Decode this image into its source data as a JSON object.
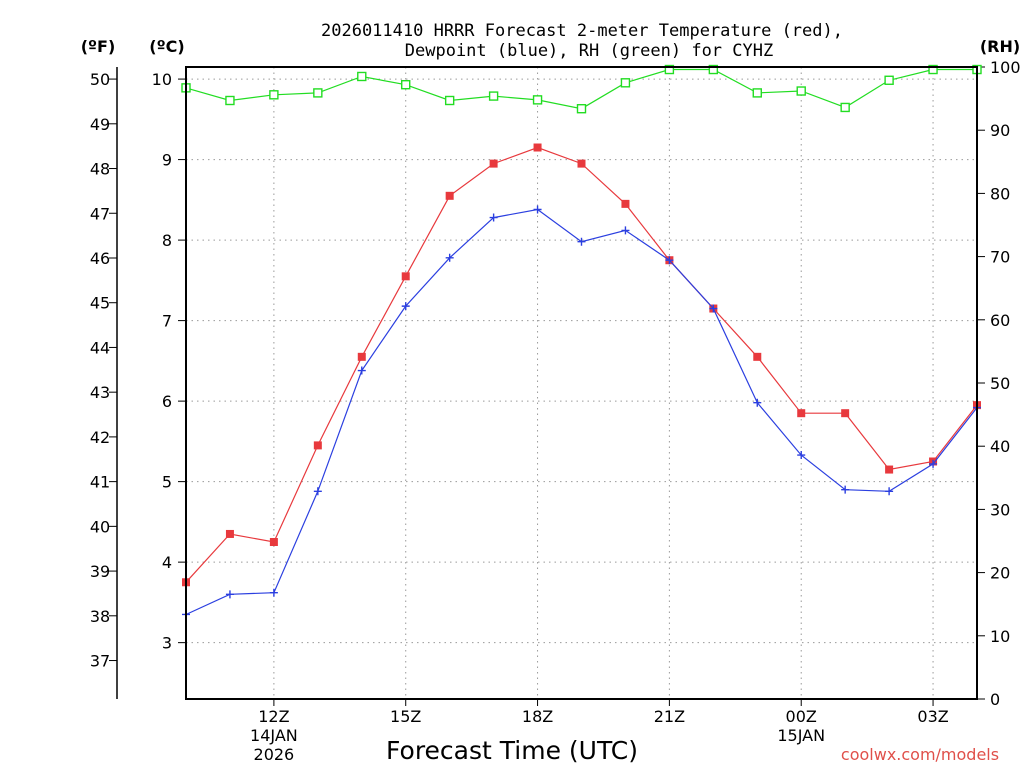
{
  "chart_data": {
    "type": "line",
    "title_line1": "2026011410 HRRR Forecast 2-meter Temperature (red),",
    "title_line2": "Dewpoint (blue), RH (green) for CYHZ",
    "xlabel": "Forecast Time (UTC)",
    "credit": "coolwx.com/models",
    "unit_f": "(ºF)",
    "unit_c": "(ºC)",
    "unit_rh": "(RH)",
    "x_hours_utc": [
      10,
      11,
      12,
      13,
      14,
      15,
      16,
      17,
      18,
      19,
      20,
      21,
      22,
      23,
      24,
      25,
      26,
      27,
      28
    ],
    "xlim": [
      10,
      28
    ],
    "x_ticks": [
      {
        "hour": 12,
        "label": "12Z",
        "sub1": "14JAN",
        "sub2": "2026"
      },
      {
        "hour": 15,
        "label": "15Z",
        "sub1": "",
        "sub2": ""
      },
      {
        "hour": 18,
        "label": "18Z",
        "sub1": "",
        "sub2": ""
      },
      {
        "hour": 21,
        "label": "21Z",
        "sub1": "",
        "sub2": ""
      },
      {
        "hour": 24,
        "label": "00Z",
        "sub1": "15JAN",
        "sub2": ""
      },
      {
        "hour": 27,
        "label": "03Z",
        "sub1": "",
        "sub2": ""
      }
    ],
    "ylim_c": [
      2.3,
      10.15
    ],
    "y_ticks_c": [
      "3",
      "4",
      "5",
      "6",
      "7",
      "8",
      "9",
      "10"
    ],
    "y_ticks_f": [
      "37",
      "38",
      "39",
      "40",
      "41",
      "42",
      "43",
      "44",
      "45",
      "46",
      "47",
      "48",
      "49",
      "50"
    ],
    "ylim_rh": [
      0,
      100
    ],
    "y_ticks_rh": [
      "0",
      "10",
      "20",
      "30",
      "40",
      "50",
      "60",
      "70",
      "80",
      "90",
      "100"
    ],
    "series": [
      {
        "name": "Temperature",
        "axis": "c",
        "color": "#e8393d",
        "marker": "filled-square",
        "values": [
          3.75,
          4.35,
          4.25,
          5.45,
          6.55,
          7.55,
          8.55,
          8.95,
          9.15,
          8.95,
          8.45,
          7.75,
          7.15,
          6.55,
          5.85,
          5.85,
          5.15,
          5.25,
          5.95
        ]
      },
      {
        "name": "Dewpoint",
        "axis": "c",
        "color": "#2b3fe0",
        "marker": "plus",
        "values": [
          3.35,
          3.6,
          3.62,
          4.88,
          6.38,
          7.18,
          7.78,
          8.28,
          8.38,
          7.98,
          8.12,
          7.75,
          7.15,
          5.98,
          5.33,
          4.9,
          4.88,
          5.22,
          5.92
        ]
      },
      {
        "name": "RH",
        "axis": "rh",
        "color": "#22dd22",
        "marker": "open-square",
        "values": [
          96.7,
          94.7,
          95.6,
          95.9,
          98.5,
          97.2,
          94.7,
          95.4,
          94.8,
          93.4,
          97.5,
          99.6,
          99.6,
          95.9,
          96.2,
          93.6,
          97.9,
          99.6,
          99.6
        ]
      }
    ]
  }
}
